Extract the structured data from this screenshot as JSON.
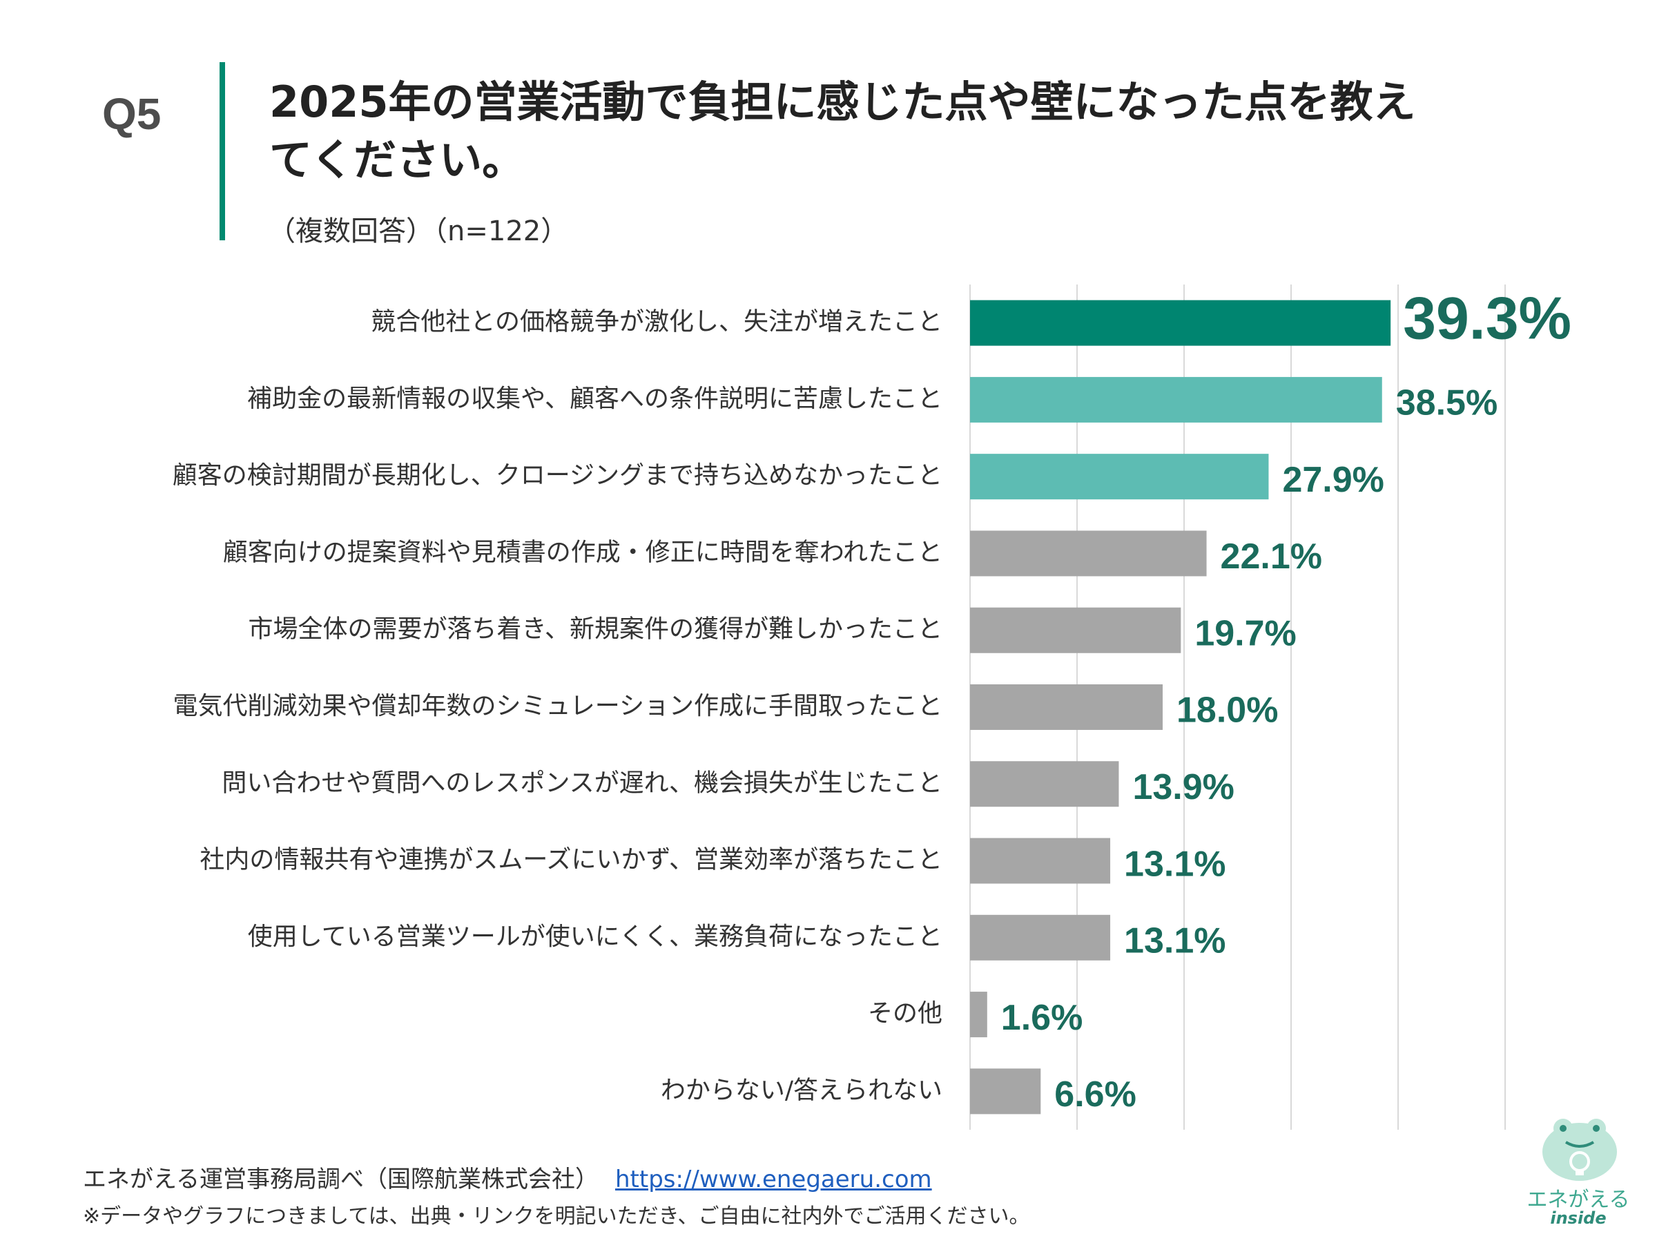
{
  "header": {
    "question_number": "Q5",
    "title": "2025年の営業活動で負担に感じた点や壁になった点を教えてください。",
    "subtitle": "（複数回答）（n=122）"
  },
  "chart_data": {
    "type": "bar",
    "orientation": "horizontal",
    "title": "2025年の営業活動で負担に感じた点や壁になった点を教えてください。",
    "unit": "%",
    "xlim": [
      0,
      50
    ],
    "grid": true,
    "categories": [
      "競合他社との価格競争が激化し、失注が増えたこと",
      "補助金の最新情報の収集や、顧客への条件説明に苦慮したこと",
      "顧客の検討期間が長期化し、クロージングまで持ち込めなかったこと",
      "顧客向けの提案資料や見積書の作成・修正に時間を奪われたこと",
      "市場全体の需要が落ち着き、新規案件の獲得が難しかったこと",
      "電気代削減効果や償却年数のシミュレーション作成に手間取ったこと",
      "問い合わせや質問へのレスポンスが遅れ、機会損失が生じたこと",
      "社内の情報共有や連携がスムーズにいかず、営業効率が落ちたこと",
      "使用している営業ツールが使いにくく、業務負荷になったこと",
      "その他",
      "わからない/答えられない"
    ],
    "values": [
      39.3,
      38.5,
      27.9,
      22.1,
      19.7,
      18.0,
      13.9,
      13.1,
      13.1,
      1.6,
      6.6
    ],
    "value_labels": [
      "39.3%",
      "38.5%",
      "27.9%",
      "22.1%",
      "19.7%",
      "18.0%",
      "13.9%",
      "13.1%",
      "13.1%",
      "1.6%",
      "6.6%"
    ],
    "bar_colors": [
      "#008570",
      "#5dbcb3",
      "#5dbcb3",
      "#a6a6a6",
      "#a6a6a6",
      "#a6a6a6",
      "#a6a6a6",
      "#a6a6a6",
      "#a6a6a6",
      "#a6a6a6",
      "#a6a6a6"
    ],
    "label_color": "#1a6b5c",
    "grid_color": "#d9d9d9"
  },
  "footer": {
    "source": "エネがえる運営事務局調べ（国際航業株式会社）",
    "url": "https://www.enegaeru.com",
    "note": "※データやグラフにつきましては、出典・リンクを明記いただき、ご自由に社内外でご活用ください。"
  },
  "logo": {
    "name": "エネがえる",
    "sub": "inside"
  }
}
